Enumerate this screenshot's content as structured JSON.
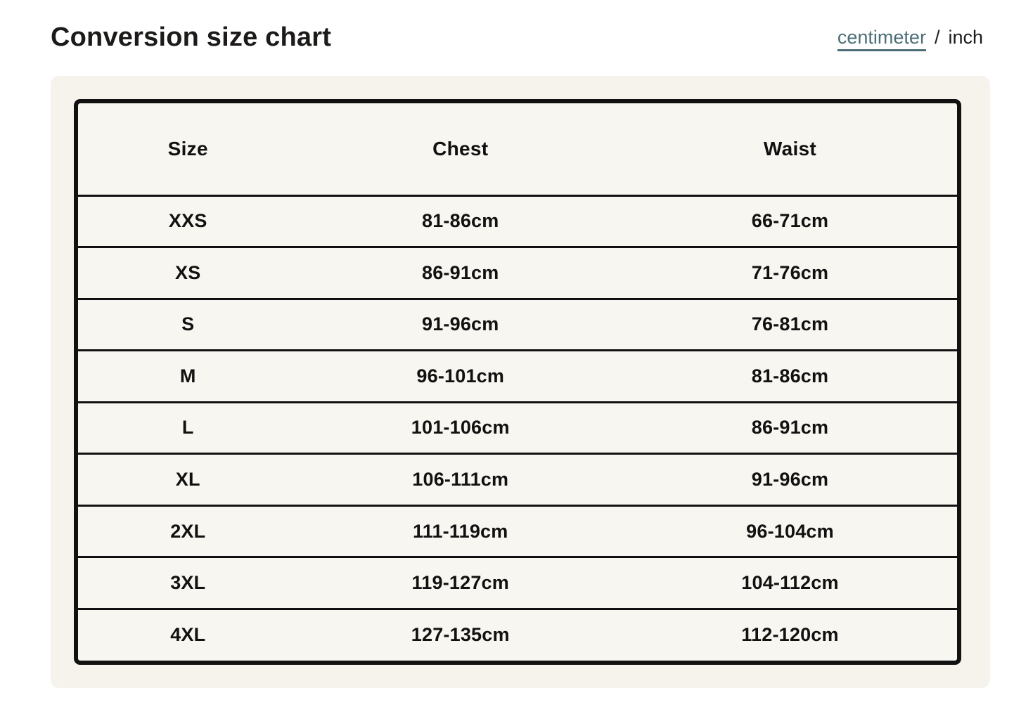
{
  "header": {
    "title": "Conversion size chart",
    "unit_toggle": {
      "separator": "/",
      "options": [
        {
          "label": "centimeter",
          "active": true
        },
        {
          "label": "inch",
          "active": false
        }
      ]
    }
  },
  "chart_data": {
    "type": "table",
    "columns": {
      "size": "Size",
      "chest": "Chest",
      "waist": "Waist"
    },
    "rows": [
      {
        "size": "XXS",
        "chest": "81-86cm",
        "waist": "66-71cm"
      },
      {
        "size": "XS",
        "chest": "86-91cm",
        "waist": "71-76cm"
      },
      {
        "size": "S",
        "chest": "91-96cm",
        "waist": "76-81cm"
      },
      {
        "size": "M",
        "chest": "96-101cm",
        "waist": "81-86cm"
      },
      {
        "size": "L",
        "chest": "101-106cm",
        "waist": "86-91cm"
      },
      {
        "size": "XL",
        "chest": "106-111cm",
        "waist": "91-96cm"
      },
      {
        "size": "2XL",
        "chest": "111-119cm",
        "waist": "96-104cm"
      },
      {
        "size": "3XL",
        "chest": "119-127cm",
        "waist": "104-112cm"
      },
      {
        "size": "4XL",
        "chest": "127-135cm",
        "waist": "112-120cm"
      }
    ]
  },
  "colors": {
    "page_background": "#ffffff",
    "card_background": "#f5f3ec",
    "table_background": "#f8f6f0",
    "border": "#111111",
    "text": "#1c1b1a",
    "link_teal": "#4c6f77"
  }
}
